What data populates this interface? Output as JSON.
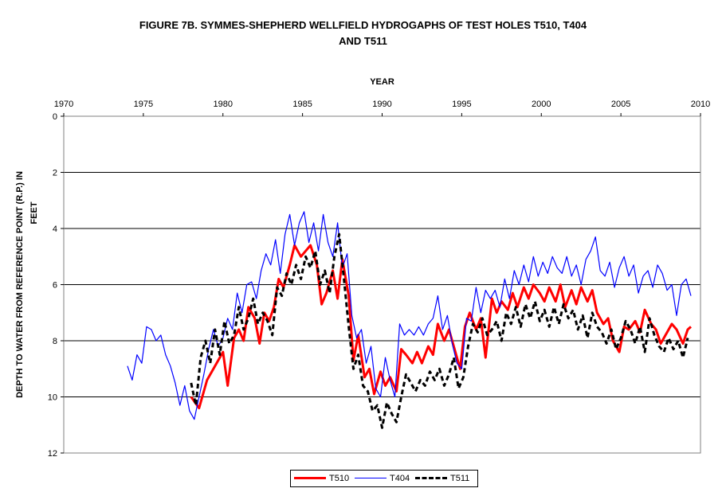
{
  "chart_data": {
    "type": "line",
    "title_line1": "FIGURE 7B. SYMMES-SHEPHERD WELLFIELD HYDROGAPHS OF TEST HOLES  T510,  T404",
    "title_line2": "AND T511",
    "xlabel": "YEAR",
    "ylabel_line1": "DEPTH TO WATER FROM REFERENCE POINT (R.P.)  IN",
    "ylabel_line2": "FEET",
    "xlim": [
      1970,
      2010
    ],
    "ylim": [
      0,
      12
    ],
    "y_inverted": true,
    "x_axis_position": "top",
    "grid": "horizontal",
    "x_ticks": [
      1970,
      1975,
      1980,
      1985,
      1990,
      1995,
      2000,
      2005,
      2010
    ],
    "y_ticks": [
      0,
      2,
      4,
      6,
      8,
      10,
      12
    ],
    "legend_position": "bottom-center",
    "series": [
      {
        "name": "T510",
        "color": "#ff0000",
        "style": "solid-thick",
        "x": [
          1978.0,
          1978.5,
          1979.0,
          1979.5,
          1980.0,
          1980.3,
          1980.7,
          1981.0,
          1981.3,
          1981.6,
          1982.0,
          1982.3,
          1982.6,
          1982.9,
          1983.2,
          1983.5,
          1983.8,
          1984.2,
          1984.5,
          1984.9,
          1985.2,
          1985.5,
          1985.9,
          1986.2,
          1986.5,
          1986.9,
          1987.2,
          1987.5,
          1987.9,
          1988.2,
          1988.5,
          1988.9,
          1989.2,
          1989.5,
          1989.9,
          1990.2,
          1990.5,
          1990.9,
          1991.2,
          1991.5,
          1991.9,
          1992.2,
          1992.5,
          1992.9,
          1993.2,
          1993.5,
          1993.9,
          1994.2,
          1994.5,
          1994.9,
          1995.2,
          1995.5,
          1995.9,
          1996.2,
          1996.5,
          1996.9,
          1997.2,
          1997.5,
          1997.9,
          1998.2,
          1998.5,
          1998.9,
          1999.2,
          1999.5,
          1999.9,
          2000.2,
          2000.5,
          2000.9,
          2001.2,
          2001.5,
          2001.9,
          2002.2,
          2002.5,
          2002.9,
          2003.2,
          2003.5,
          2003.9,
          2004.2,
          2004.5,
          2004.9,
          2005.2,
          2005.5,
          2005.9,
          2006.2,
          2006.5,
          2006.9,
          2007.2,
          2007.5,
          2007.9,
          2008.2,
          2008.5,
          2008.9,
          2009.2,
          2009.4
        ],
        "y": [
          10.0,
          10.4,
          9.4,
          8.9,
          8.4,
          9.6,
          7.9,
          7.6,
          8.0,
          6.8,
          7.2,
          8.1,
          7.0,
          7.3,
          6.8,
          5.8,
          6.1,
          5.3,
          4.6,
          5.0,
          4.8,
          4.6,
          5.3,
          6.7,
          6.3,
          5.5,
          6.5,
          5.1,
          6.4,
          8.7,
          7.8,
          9.3,
          9.0,
          9.9,
          9.1,
          9.6,
          9.3,
          9.8,
          8.3,
          8.5,
          8.8,
          8.4,
          8.8,
          8.2,
          8.5,
          7.4,
          8.0,
          7.6,
          8.2,
          9.0,
          7.5,
          7.0,
          7.6,
          7.2,
          8.6,
          6.5,
          7.0,
          6.6,
          6.9,
          6.3,
          6.8,
          6.1,
          6.5,
          6.0,
          6.3,
          6.6,
          6.1,
          6.6,
          6.0,
          6.8,
          6.2,
          6.7,
          6.1,
          6.6,
          6.2,
          7.0,
          7.4,
          7.2,
          8.0,
          8.4,
          7.5,
          7.6,
          7.3,
          7.7,
          6.9,
          7.4,
          7.6,
          8.1,
          7.7,
          7.4,
          7.6,
          8.1,
          7.6,
          7.5
        ]
      },
      {
        "name": "T404",
        "color": "#0000ff",
        "style": "solid-thin",
        "x": [
          1974.0,
          1974.3,
          1974.6,
          1974.9,
          1975.2,
          1975.5,
          1975.8,
          1976.1,
          1976.4,
          1976.7,
          1977.0,
          1977.3,
          1977.6,
          1977.9,
          1978.2,
          1978.5,
          1978.8,
          1979.1,
          1979.4,
          1979.7,
          1980.0,
          1980.3,
          1980.6,
          1980.9,
          1981.2,
          1981.5,
          1981.8,
          1982.1,
          1982.4,
          1982.7,
          1983.0,
          1983.3,
          1983.6,
          1983.9,
          1984.2,
          1984.5,
          1984.8,
          1985.1,
          1985.4,
          1985.7,
          1986.0,
          1986.3,
          1986.6,
          1986.9,
          1987.2,
          1987.5,
          1987.8,
          1988.1,
          1988.4,
          1988.7,
          1989.0,
          1989.3,
          1989.6,
          1989.9,
          1990.2,
          1990.5,
          1990.8,
          1991.1,
          1991.4,
          1991.7,
          1992.0,
          1992.3,
          1992.6,
          1992.9,
          1993.2,
          1993.5,
          1993.8,
          1994.1,
          1994.4,
          1994.7,
          1995.0,
          1995.3,
          1995.6,
          1995.9,
          1996.2,
          1996.5,
          1996.8,
          1997.1,
          1997.4,
          1997.7,
          1998.0,
          1998.3,
          1998.6,
          1998.9,
          1999.2,
          1999.5,
          1999.8,
          2000.1,
          2000.4,
          2000.7,
          2001.0,
          2001.3,
          2001.6,
          2001.9,
          2002.2,
          2002.5,
          2002.8,
          2003.1,
          2003.4,
          2003.7,
          2004.0,
          2004.3,
          2004.6,
          2004.9,
          2005.2,
          2005.5,
          2005.8,
          2006.1,
          2006.4,
          2006.7,
          2007.0,
          2007.3,
          2007.6,
          2007.9,
          2008.2,
          2008.5,
          2008.8,
          2009.1,
          2009.4
        ],
        "y": [
          8.9,
          9.4,
          8.5,
          8.8,
          7.5,
          7.6,
          8.0,
          7.8,
          8.5,
          8.9,
          9.5,
          10.3,
          9.6,
          10.5,
          10.8,
          10.0,
          9.2,
          8.3,
          7.6,
          8.2,
          7.9,
          7.2,
          7.6,
          6.3,
          7.0,
          6.0,
          5.9,
          6.5,
          5.5,
          4.9,
          5.3,
          4.4,
          5.6,
          4.2,
          3.5,
          4.6,
          3.8,
          3.4,
          4.5,
          3.8,
          4.8,
          3.5,
          4.5,
          5.0,
          3.8,
          5.4,
          4.9,
          7.1,
          7.9,
          7.6,
          8.8,
          8.2,
          9.7,
          10.0,
          8.6,
          9.4,
          10.0,
          7.4,
          7.8,
          7.6,
          7.8,
          7.5,
          7.8,
          7.4,
          7.2,
          6.4,
          7.6,
          7.1,
          8.1,
          8.8,
          9.0,
          7.2,
          7.3,
          6.1,
          7.0,
          6.2,
          6.5,
          6.2,
          6.8,
          5.8,
          6.5,
          5.5,
          6.0,
          5.3,
          5.9,
          5.0,
          5.7,
          5.2,
          5.6,
          5.0,
          5.4,
          5.6,
          5.0,
          5.7,
          5.3,
          6.0,
          5.1,
          4.8,
          4.3,
          5.5,
          5.7,
          5.2,
          6.1,
          5.4,
          5.0,
          5.7,
          5.3,
          6.3,
          5.7,
          5.5,
          6.1,
          5.3,
          5.6,
          6.2,
          6.0,
          7.1,
          6.0,
          5.8,
          6.4
        ]
      },
      {
        "name": "T511",
        "color": "#000000",
        "style": "dashed-thick",
        "x": [
          1978.0,
          1978.3,
          1978.6,
          1978.9,
          1979.2,
          1979.5,
          1979.8,
          1980.1,
          1980.4,
          1980.7,
          1981.0,
          1981.3,
          1981.6,
          1981.9,
          1982.2,
          1982.5,
          1982.8,
          1983.1,
          1983.4,
          1983.7,
          1984.0,
          1984.3,
          1984.6,
          1984.9,
          1985.2,
          1985.5,
          1985.8,
          1986.1,
          1986.4,
          1986.7,
          1987.0,
          1987.3,
          1987.6,
          1987.9,
          1988.2,
          1988.5,
          1988.8,
          1989.1,
          1989.4,
          1989.7,
          1990.0,
          1990.3,
          1990.6,
          1990.9,
          1991.2,
          1991.5,
          1991.8,
          1992.1,
          1992.4,
          1992.7,
          1993.0,
          1993.3,
          1993.6,
          1993.9,
          1994.2,
          1994.5,
          1994.8,
          1995.1,
          1995.4,
          1995.7,
          1996.0,
          1996.3,
          1996.6,
          1996.9,
          1997.2,
          1997.5,
          1997.8,
          1998.1,
          1998.4,
          1998.7,
          1999.0,
          1999.3,
          1999.6,
          1999.9,
          2000.2,
          2000.5,
          2000.8,
          2001.1,
          2001.4,
          2001.7,
          2002.0,
          2002.3,
          2002.6,
          2002.9,
          2003.2,
          2003.5,
          2003.8,
          2004.1,
          2004.4,
          2004.7,
          2005.0,
          2005.3,
          2005.6,
          2005.9,
          2006.2,
          2006.5,
          2006.8,
          2007.1,
          2007.4,
          2007.7,
          2008.0,
          2008.3,
          2008.6,
          2008.9,
          2009.2
        ],
        "y": [
          9.5,
          10.3,
          8.6,
          8.0,
          8.8,
          7.6,
          8.5,
          7.3,
          8.1,
          7.8,
          6.8,
          7.6,
          7.2,
          6.5,
          7.4,
          7.0,
          7.3,
          7.8,
          6.1,
          6.4,
          5.6,
          6.0,
          5.3,
          5.8,
          5.0,
          5.4,
          4.8,
          6.0,
          5.5,
          6.3,
          5.0,
          4.2,
          5.8,
          7.5,
          9.0,
          8.5,
          9.6,
          9.8,
          10.5,
          10.3,
          11.1,
          10.2,
          10.6,
          10.9,
          10.0,
          9.2,
          9.5,
          9.8,
          9.4,
          9.6,
          9.1,
          9.4,
          9.0,
          9.6,
          9.2,
          8.6,
          9.7,
          9.3,
          8.2,
          7.4,
          7.7,
          7.2,
          7.8,
          7.6,
          7.3,
          8.0,
          7.0,
          7.4,
          6.8,
          7.5,
          6.7,
          7.2,
          6.6,
          7.3,
          6.9,
          7.5,
          6.8,
          7.4,
          6.7,
          7.2,
          6.9,
          7.6,
          7.1,
          7.9,
          7.0,
          7.5,
          7.7,
          8.1,
          7.6,
          8.3,
          7.9,
          7.3,
          7.6,
          8.1,
          7.5,
          8.4,
          7.2,
          7.8,
          8.2,
          8.4,
          7.9,
          8.3,
          8.0,
          8.6,
          7.9
        ]
      }
    ]
  }
}
